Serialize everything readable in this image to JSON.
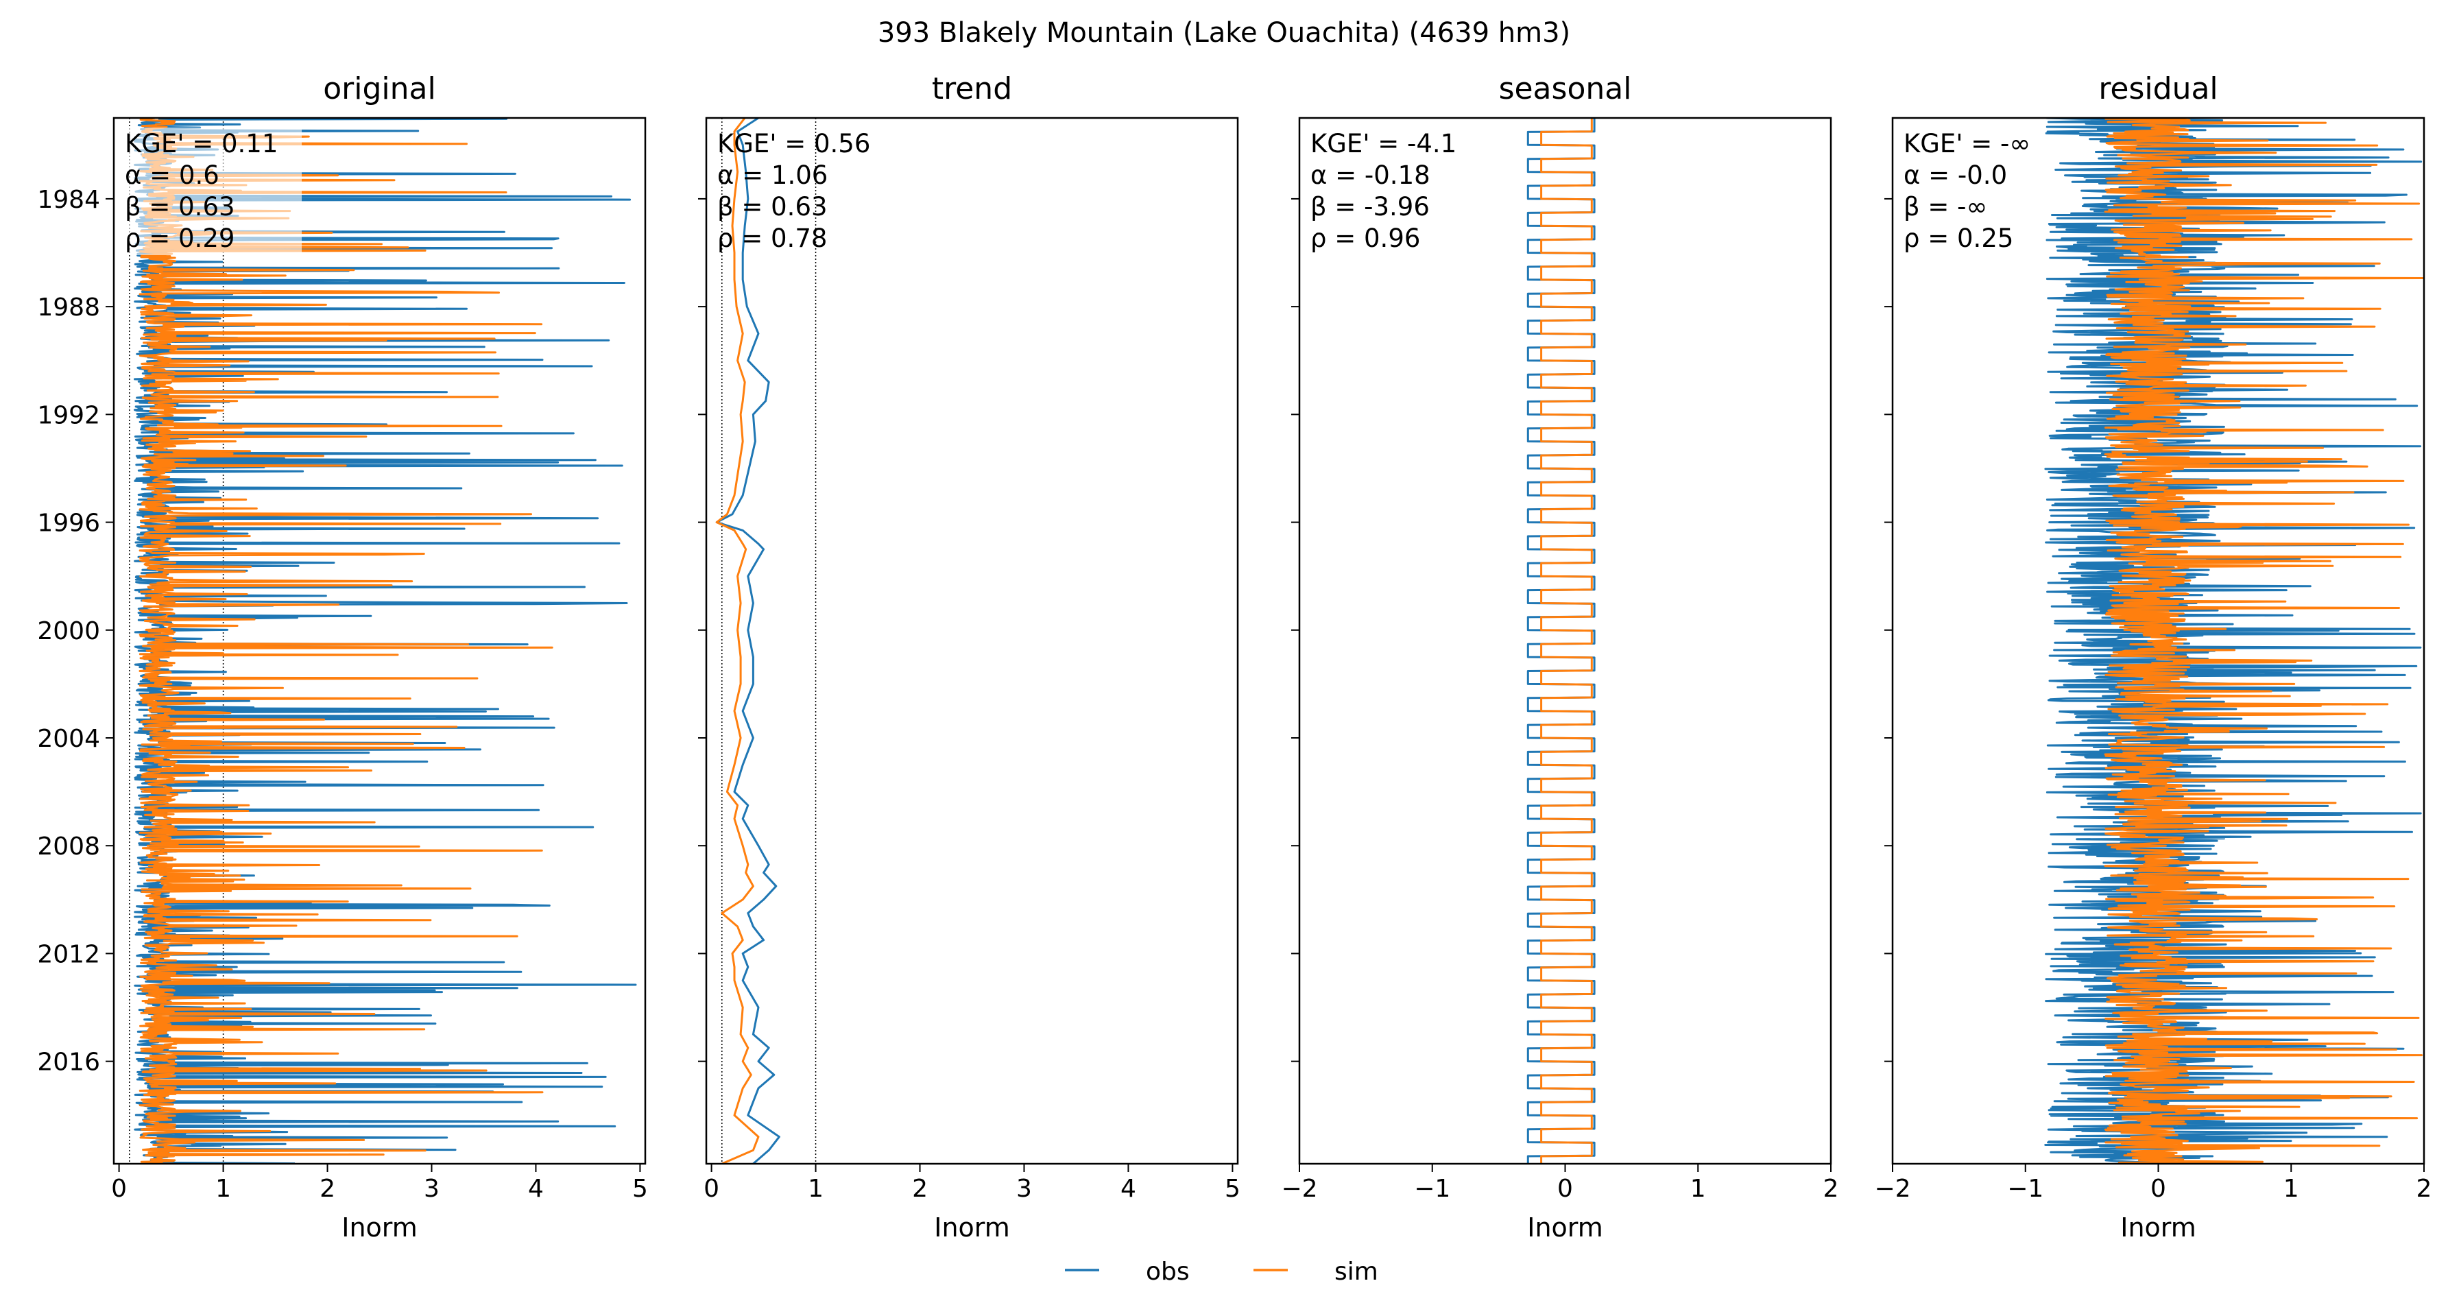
{
  "figure": {
    "suptitle": "393  Blakely Mountain (Lake Ouachita) (4639 hm3)",
    "colors": {
      "obs": "#1f77b4",
      "sim": "#ff7f0e",
      "axes": "#000000",
      "reference_line": "#000000"
    }
  },
  "legend": {
    "placement": "bottom-center",
    "entries": [
      {
        "label": "obs",
        "color": "#1f77b4"
      },
      {
        "label": "sim",
        "color": "#ff7f0e"
      }
    ]
  },
  "chart_data": [
    {
      "type": "line",
      "title": "original",
      "xlabel": "Inorm",
      "ylabel": "",
      "xlim": [
        -0.05,
        5.05
      ],
      "ylim": [
        1981.0,
        2019.8
      ],
      "xticks": [
        "0",
        "1",
        "2",
        "3",
        "4",
        "5"
      ],
      "xtick_values": [
        0,
        1,
        2,
        3,
        4,
        5
      ],
      "yticks": [
        "1984",
        "1988",
        "1992",
        "1996",
        "2000",
        "2004",
        "2008",
        "2012",
        "2016"
      ],
      "ytick_values": [
        1984,
        1988,
        1992,
        1996,
        2000,
        2004,
        2008,
        2012,
        2016
      ],
      "reference_lines_x": [
        0.1,
        1
      ],
      "annotations": [
        "KGE' = 0.11",
        "α = 0.6",
        "β = 0.63",
        "ρ = 0.29"
      ],
      "series": [
        {
          "name": "obs",
          "style": "spiky",
          "baseline": 0.15,
          "peak": 5.0,
          "approx_points": []
        },
        {
          "name": "sim",
          "style": "spiky",
          "baseline": 0.2,
          "peak": 4.2,
          "approx_points": []
        }
      ]
    },
    {
      "type": "line",
      "title": "trend",
      "xlabel": "Inorm",
      "ylabel": "",
      "xlim": [
        -0.05,
        5.05
      ],
      "ylim": [
        1981.0,
        2019.8
      ],
      "xticks": [
        "0",
        "1",
        "2",
        "3",
        "4",
        "5"
      ],
      "xtick_values": [
        0,
        1,
        2,
        3,
        4,
        5
      ],
      "yticks": [],
      "ytick_values": [],
      "reference_lines_x": [
        0.1,
        1
      ],
      "annotations": [
        "KGE' = 0.56",
        "α = 1.06",
        "β = 0.63",
        "ρ = 0.78"
      ],
      "series": [
        {
          "name": "obs",
          "style": "smooth",
          "points": [
            [
              1981.0,
              0.45
            ],
            [
              1981.5,
              0.25
            ],
            [
              1982,
              0.3
            ],
            [
              1983,
              0.33
            ],
            [
              1984,
              0.35
            ],
            [
              1985,
              0.32
            ],
            [
              1986,
              0.3
            ],
            [
              1987,
              0.3
            ],
            [
              1988,
              0.34
            ],
            [
              1989,
              0.45
            ],
            [
              1990,
              0.35
            ],
            [
              1990.8,
              0.55
            ],
            [
              1991.5,
              0.52
            ],
            [
              1992,
              0.4
            ],
            [
              1993,
              0.42
            ],
            [
              1994,
              0.36
            ],
            [
              1995,
              0.3
            ],
            [
              1995.7,
              0.2
            ],
            [
              1996,
              0.05
            ],
            [
              1996.3,
              0.3
            ],
            [
              1996.8,
              0.45
            ],
            [
              1997,
              0.5
            ],
            [
              1998,
              0.35
            ],
            [
              1999,
              0.4
            ],
            [
              2000,
              0.35
            ],
            [
              2001,
              0.4
            ],
            [
              2002,
              0.4
            ],
            [
              2003,
              0.3
            ],
            [
              2004,
              0.4
            ],
            [
              2004.5,
              0.35
            ],
            [
              2005,
              0.3
            ],
            [
              2006,
              0.22
            ],
            [
              2006.5,
              0.35
            ],
            [
              2007,
              0.3
            ],
            [
              2008,
              0.45
            ],
            [
              2008.7,
              0.55
            ],
            [
              2009,
              0.5
            ],
            [
              2009.5,
              0.62
            ],
            [
              2010,
              0.5
            ],
            [
              2010.5,
              0.35
            ],
            [
              2011,
              0.4
            ],
            [
              2011.5,
              0.5
            ],
            [
              2012,
              0.3
            ],
            [
              2012.5,
              0.35
            ],
            [
              2013,
              0.3
            ],
            [
              2014,
              0.45
            ],
            [
              2015,
              0.4
            ],
            [
              2015.5,
              0.55
            ],
            [
              2016,
              0.45
            ],
            [
              2016.5,
              0.6
            ],
            [
              2017,
              0.45
            ],
            [
              2018,
              0.35
            ],
            [
              2018.8,
              0.65
            ],
            [
              2019.3,
              0.55
            ],
            [
              2019.8,
              0.4
            ]
          ]
        },
        {
          "name": "sim",
          "style": "smooth",
          "points": [
            [
              1981.0,
              0.32
            ],
            [
              1981.5,
              0.22
            ],
            [
              1982,
              0.22
            ],
            [
              1983,
              0.25
            ],
            [
              1984,
              0.22
            ],
            [
              1985,
              0.2
            ],
            [
              1986,
              0.22
            ],
            [
              1987,
              0.22
            ],
            [
              1988,
              0.24
            ],
            [
              1989,
              0.3
            ],
            [
              1990,
              0.25
            ],
            [
              1990.8,
              0.32
            ],
            [
              1991.5,
              0.3
            ],
            [
              1992,
              0.28
            ],
            [
              1993,
              0.3
            ],
            [
              1994,
              0.26
            ],
            [
              1995,
              0.22
            ],
            [
              1995.7,
              0.15
            ],
            [
              1996,
              0.05
            ],
            [
              1996.3,
              0.22
            ],
            [
              1996.8,
              0.3
            ],
            [
              1997,
              0.33
            ],
            [
              1998,
              0.25
            ],
            [
              1999,
              0.28
            ],
            [
              2000,
              0.25
            ],
            [
              2001,
              0.28
            ],
            [
              2002,
              0.28
            ],
            [
              2003,
              0.22
            ],
            [
              2004,
              0.28
            ],
            [
              2004.5,
              0.25
            ],
            [
              2005,
              0.22
            ],
            [
              2006,
              0.15
            ],
            [
              2006.5,
              0.25
            ],
            [
              2007,
              0.22
            ],
            [
              2008,
              0.3
            ],
            [
              2008.7,
              0.35
            ],
            [
              2009,
              0.33
            ],
            [
              2009.5,
              0.4
            ],
            [
              2010,
              0.3
            ],
            [
              2010.5,
              0.1
            ],
            [
              2011,
              0.25
            ],
            [
              2011.5,
              0.3
            ],
            [
              2012,
              0.2
            ],
            [
              2012.5,
              0.22
            ],
            [
              2013,
              0.22
            ],
            [
              2014,
              0.3
            ],
            [
              2015,
              0.28
            ],
            [
              2015.5,
              0.35
            ],
            [
              2016,
              0.3
            ],
            [
              2016.5,
              0.38
            ],
            [
              2017,
              0.3
            ],
            [
              2018,
              0.22
            ],
            [
              2018.8,
              0.45
            ],
            [
              2019.3,
              0.4
            ],
            [
              2019.8,
              0.1
            ]
          ]
        }
      ]
    },
    {
      "type": "line",
      "title": "seasonal",
      "xlabel": "Inorm",
      "ylabel": "",
      "xlim": [
        -2,
        2
      ],
      "ylim": [
        1981.0,
        2019.8
      ],
      "xticks": [
        "−2",
        "−1",
        "0",
        "1",
        "2"
      ],
      "xtick_values": [
        -2,
        -1,
        0,
        1,
        2
      ],
      "yticks": [],
      "ytick_values": [],
      "reference_lines_x": [],
      "annotations": [
        "KGE' = -4.1",
        "α = -0.18",
        "β = -3.96",
        "ρ = 0.96"
      ],
      "series": [
        {
          "name": "obs",
          "style": "periodic",
          "period_years": 1,
          "min": -0.28,
          "max": 0.22
        },
        {
          "name": "sim",
          "style": "periodic",
          "period_years": 1,
          "min": -0.18,
          "max": 0.2
        }
      ]
    },
    {
      "type": "line",
      "title": "residual",
      "xlabel": "Inorm",
      "ylabel": "",
      "xlim": [
        -2,
        2
      ],
      "ylim": [
        1981.0,
        2019.8
      ],
      "xticks": [
        "−2",
        "−1",
        "0",
        "1",
        "2"
      ],
      "xtick_values": [
        -2,
        -1,
        0,
        1,
        2
      ],
      "yticks": [],
      "ytick_values": [],
      "reference_lines_x": [],
      "annotations": [
        "KGE' = -∞",
        "α = -0.0",
        "β = -∞",
        "ρ = 0.25"
      ],
      "series": [
        {
          "name": "obs",
          "style": "noisy",
          "low": -0.85,
          "high": 2.0
        },
        {
          "name": "sim",
          "style": "noisy",
          "low": -0.4,
          "high": 2.0
        }
      ]
    }
  ]
}
